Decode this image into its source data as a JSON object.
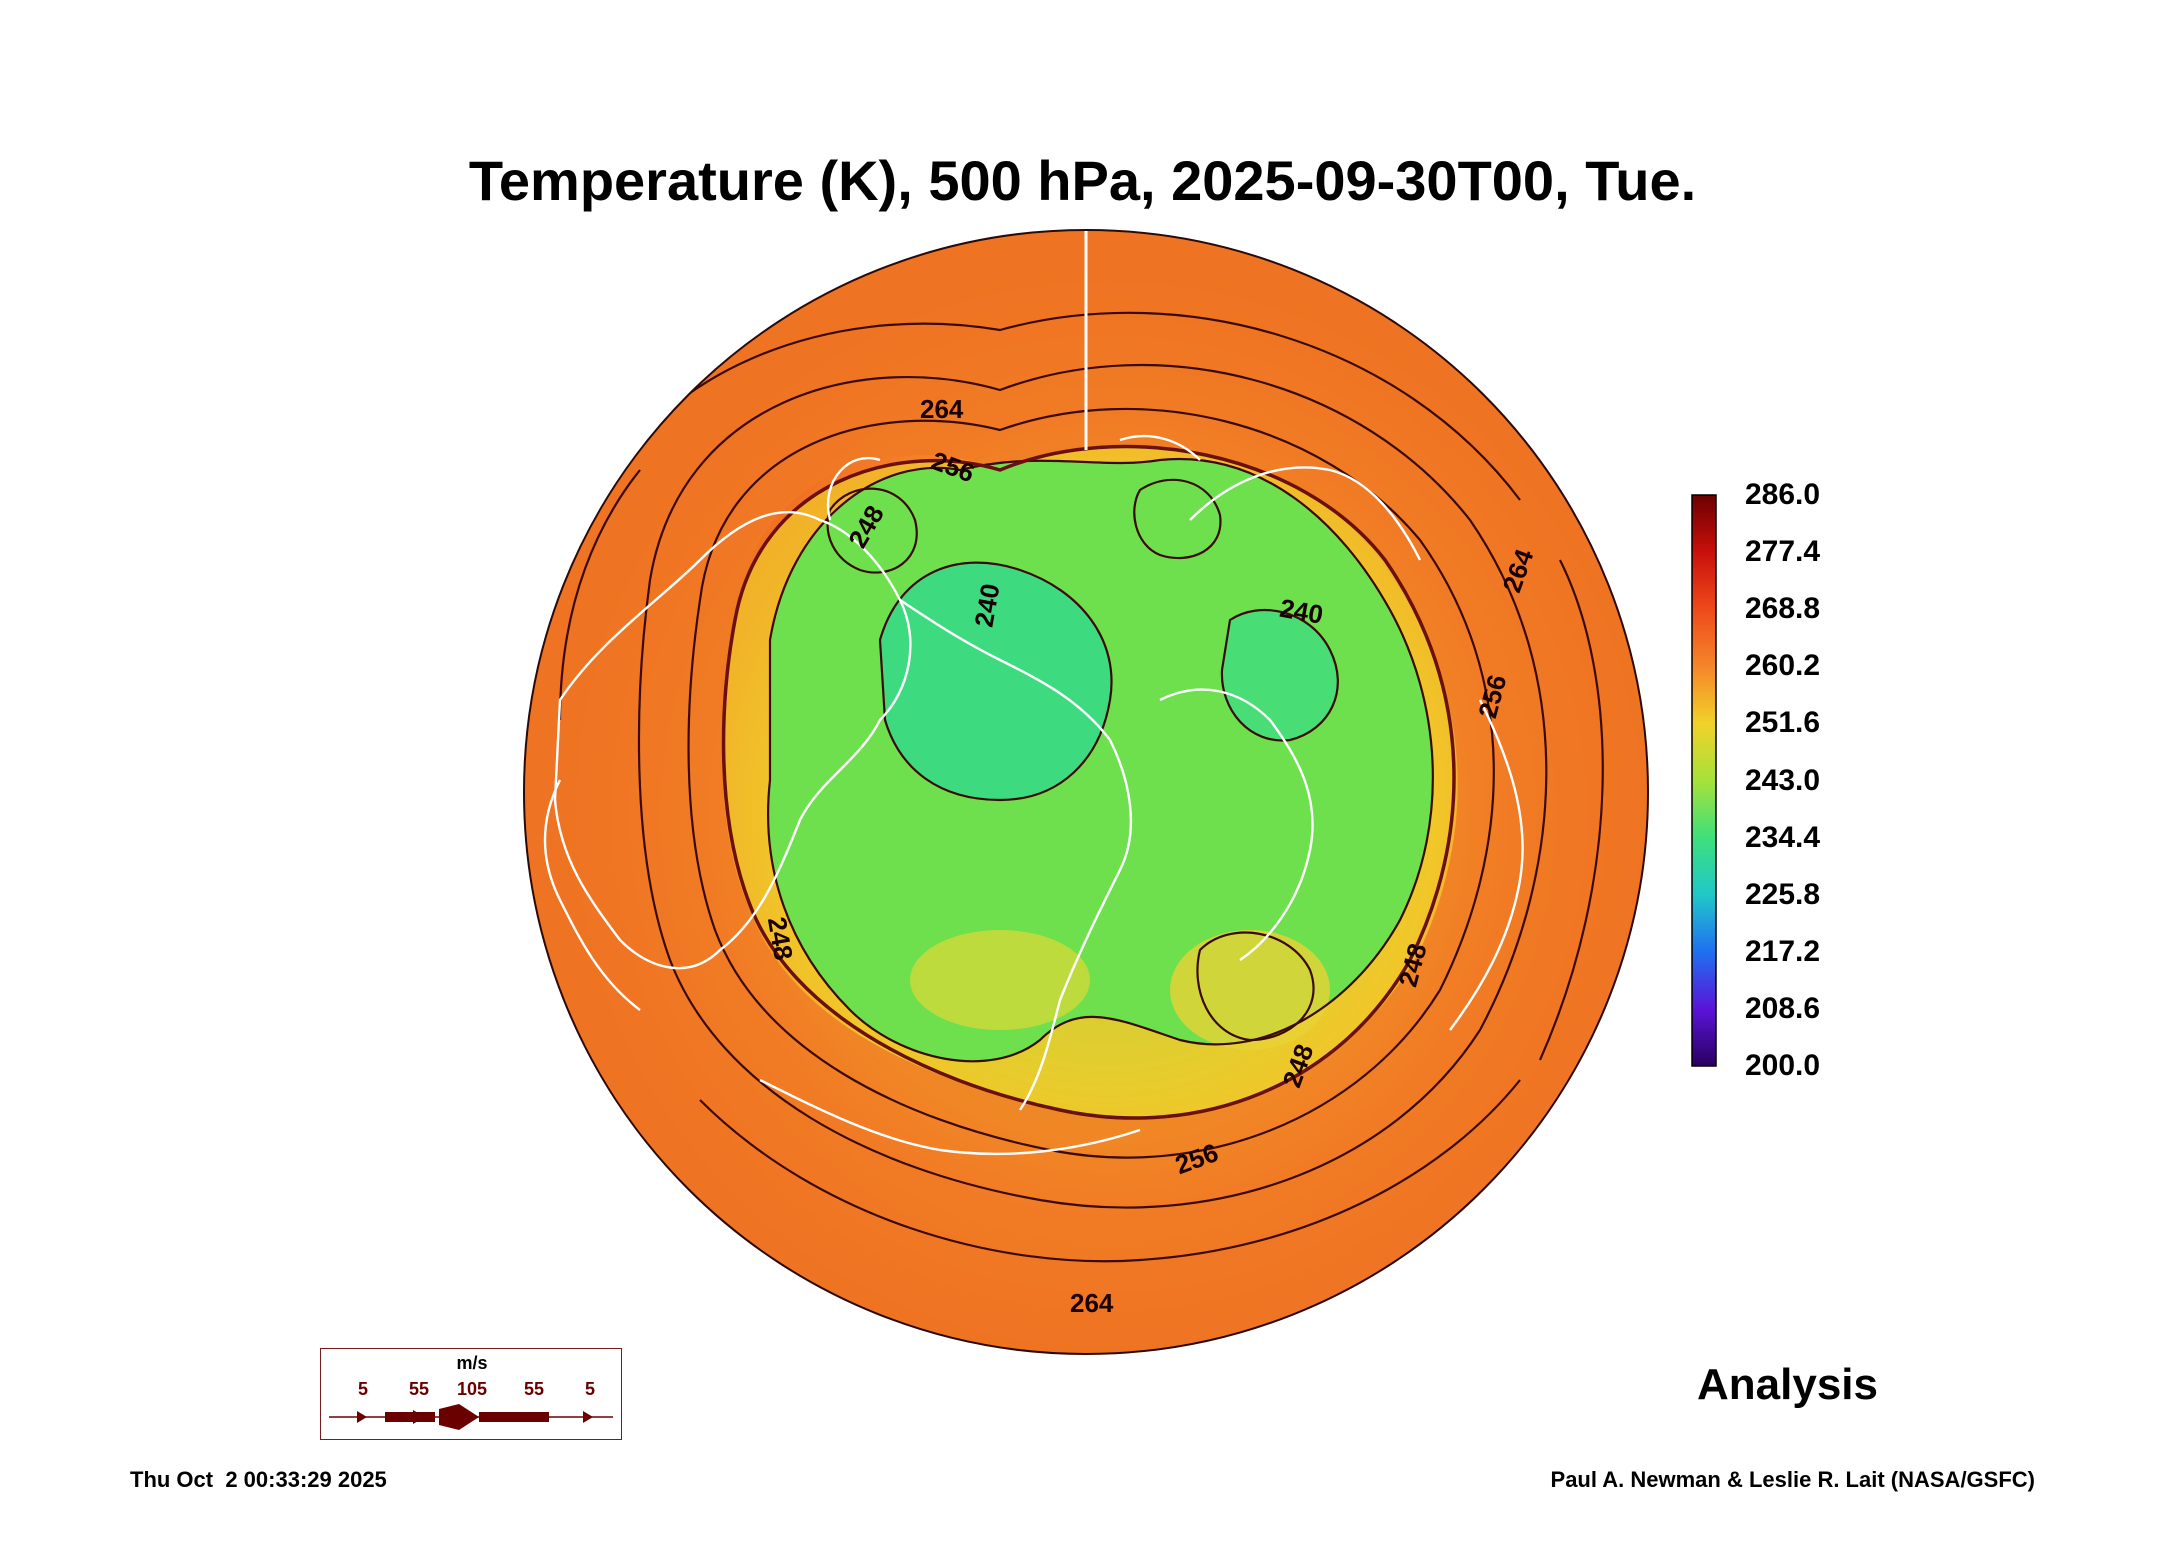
{
  "title": "Temperature (K), 500 hPa, 2025-09-30T00, Tue.",
  "map": {
    "projection": "north-polar-stereographic",
    "field": "temperature",
    "contour_labels": [
      "264",
      "256",
      "248",
      "240",
      "240",
      "256",
      "264",
      "248",
      "248",
      "256",
      "264",
      "248"
    ],
    "colors": {
      "cold_core": "#22d88a",
      "green": "#5fe05a",
      "yellow_green": "#c8e43a",
      "yellow": "#f2c92a",
      "orange": "#f5862a",
      "red_orange": "#e8501c",
      "coastline": "#ffffff",
      "contour": "#3b0a0a"
    }
  },
  "colorbar": {
    "labels": [
      "286.0",
      "277.4",
      "268.8",
      "260.2",
      "251.6",
      "243.0",
      "234.4",
      "225.8",
      "217.2",
      "208.6",
      "200.0"
    ],
    "min": 200.0,
    "max": 286.0,
    "colors": [
      "#6b0000",
      "#c8100c",
      "#ef4a1b",
      "#f5852a",
      "#f0d22a",
      "#a6e23a",
      "#3ee07a",
      "#20c8c8",
      "#2070f0",
      "#5a14d8",
      "#2a0060"
    ]
  },
  "wind_legend": {
    "unit": "m/s",
    "values": [
      "5",
      "55",
      "105",
      "55",
      "5"
    ],
    "color": "#6b0000"
  },
  "analysis_label": "Analysis",
  "timestamp": "Thu Oct  2 00:33:29 2025",
  "credit": "Paul A. Newman & Leslie R. Lait (NASA/GSFC)"
}
